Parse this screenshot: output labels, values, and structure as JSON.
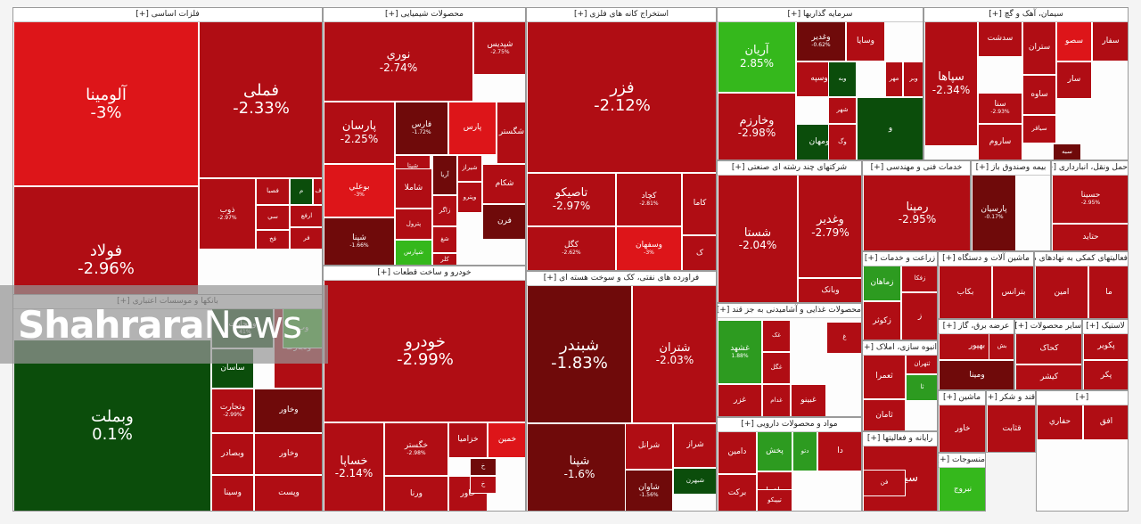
{
  "colors": {
    "red": "#b00d14",
    "brightRed": "#dd1519",
    "darkRed": "#6f0a0a",
    "darkGreen": "#0b4d0b",
    "green": "#2d9b20",
    "brightGreen": "#35b81c"
  },
  "watermark": {
    "bold": "Shahrara",
    "light": "News"
  },
  "chart_data": {
    "type": "treemap",
    "title": "",
    "sectors": [
      {
        "name": "فلزات اساسی [+]",
        "tiles": [
          {
            "s": "آلومینا",
            "c": "-3%",
            "t": "brightRed"
          },
          {
            "s": "فملی",
            "c": "-2.33%",
            "t": "red"
          },
          {
            "s": "فولاد",
            "c": "-2.96%",
            "t": "red"
          },
          {
            "s": "ذوب",
            "c": "-2.97%",
            "t": "red"
          },
          {
            "s": "فصبا",
            "c": "",
            "t": "red"
          },
          {
            "s": "سي",
            "c": "",
            "t": "red"
          },
          {
            "s": "فخ",
            "c": "",
            "t": "red"
          },
          {
            "s": "ارفع",
            "c": "",
            "t": "red"
          },
          {
            "s": "فر",
            "c": "",
            "t": "red"
          },
          {
            "s": "م",
            "c": "",
            "t": "darkGreen"
          },
          {
            "s": "ف",
            "c": "",
            "t": "red"
          }
        ]
      },
      {
        "name": "بانکها و موسسات اعتباری [+]",
        "tiles": [
          {
            "s": "وبملت",
            "c": "0.1%",
            "t": "darkGreen"
          },
          {
            "s": "وتجارت",
            "c": "-2.99%",
            "t": "red"
          },
          {
            "s": "وبصادر",
            "c": "",
            "t": "red"
          },
          {
            "s": "وسینا",
            "c": "",
            "t": "red"
          },
          {
            "s": "وخاور",
            "c": "",
            "t": "red"
          },
          {
            "s": "وپست",
            "c": "",
            "t": "red"
          },
          {
            "s": "ساسان",
            "c": "",
            "t": "darkGreen"
          },
          {
            "s": "ونتجارت",
            "c": "0.41%",
            "t": "darkGreen"
          },
          {
            "s": "وتجارت",
            "c": "",
            "t": "red"
          },
          {
            "s": "وب",
            "c": "",
            "t": "brightGreen"
          },
          {
            "s": "وخاور",
            "c": "",
            "t": "darkRed"
          }
        ]
      },
      {
        "name": "محصولات شیمیایی [+]",
        "tiles": [
          {
            "s": "نوري",
            "c": "-2.74%",
            "t": "red"
          },
          {
            "s": "شپديس",
            "c": "-2.75%",
            "t": "red"
          },
          {
            "s": "پارس",
            "c": "",
            "t": "brightRed"
          },
          {
            "s": "شگستر",
            "c": "",
            "t": "red"
          },
          {
            "s": "پارسان",
            "c": "-2.25%",
            "t": "red"
          },
          {
            "s": "فارس",
            "c": "-1.72%",
            "t": "darkRed"
          },
          {
            "s": "شپتا",
            "c": "",
            "t": "red"
          },
          {
            "s": "شاملا",
            "c": "",
            "t": "red"
          },
          {
            "s": "آريا",
            "c": "",
            "t": "darkRed"
          },
          {
            "s": "شیراز",
            "c": "",
            "t": "red"
          },
          {
            "s": "شکام",
            "c": "",
            "t": "red"
          },
          {
            "s": "بوعلي",
            "c": "-3%",
            "t": "brightRed"
          },
          {
            "s": "پترول",
            "c": "",
            "t": "red"
          },
          {
            "s": "زاگر",
            "c": "",
            "t": "red"
          },
          {
            "s": "وپترو",
            "c": "",
            "t": "red"
          },
          {
            "s": "فرن",
            "c": "",
            "t": "darkRed"
          },
          {
            "s": "شپنا",
            "c": "-1.66%",
            "t": "darkRed"
          },
          {
            "s": "شپارس",
            "c": "",
            "t": "brightGreen"
          },
          {
            "s": "شغ",
            "c": "",
            "t": "red"
          },
          {
            "s": "کلر",
            "c": "",
            "t": "red"
          }
        ]
      },
      {
        "name": "خودرو و ساخت قطعات [+]",
        "tiles": [
          {
            "s": "خودرو",
            "c": "-2.99%",
            "t": "red"
          },
          {
            "s": "خساپا",
            "c": "-2.14%",
            "t": "red"
          },
          {
            "s": "خگستر",
            "c": "-2.98%",
            "t": "red"
          },
          {
            "s": "خزاميا",
            "c": "",
            "t": "red"
          },
          {
            "s": "خمين",
            "c": "",
            "t": "brightRed"
          },
          {
            "s": "ورنا",
            "c": "",
            "t": "red"
          },
          {
            "s": "خاور",
            "c": "",
            "t": "red"
          },
          {
            "s": "خ",
            "c": "",
            "t": "darkRed"
          },
          {
            "s": "خ",
            "c": "",
            "t": "red"
          }
        ]
      },
      {
        "name": "استخراج کانه های فلزی [+]",
        "tiles": [
          {
            "s": "فزر",
            "c": "-2.12%",
            "t": "red"
          },
          {
            "s": "کاما",
            "c": "",
            "t": "red"
          },
          {
            "s": "تاصیکو",
            "c": "-2.97%",
            "t": "red"
          },
          {
            "s": "کگل",
            "c": "-2.62%",
            "t": "red"
          },
          {
            "s": "کچاد",
            "c": "-2.81%",
            "t": "red"
          },
          {
            "s": "وسفهان",
            "c": "-3%",
            "t": "brightRed"
          },
          {
            "s": "ک",
            "c": "",
            "t": "red"
          }
        ]
      },
      {
        "name": "فراورده های نفتی، کک و سوخت هسته ای [+]",
        "tiles": [
          {
            "s": "شبندر",
            "c": "-1.83%",
            "t": "darkRed"
          },
          {
            "s": "شتران",
            "c": "-2.03%",
            "t": "red"
          },
          {
            "s": "شپنا",
            "c": "-1.6%",
            "t": "darkRed"
          },
          {
            "s": "شراز",
            "c": "",
            "t": "red"
          },
          {
            "s": "شرانل",
            "c": "",
            "t": "red"
          },
          {
            "s": "شبهرن",
            "c": "",
            "t": "darkGreen"
          },
          {
            "s": "شاوان",
            "c": "-1.56%",
            "t": "darkRed"
          }
        ]
      },
      {
        "name": "سرمایه گذاریها [+]",
        "tiles": [
          {
            "s": "آريان",
            "c": "2.85%",
            "t": "brightGreen"
          },
          {
            "s": "وخارزم",
            "c": "-2.98%",
            "t": "red"
          },
          {
            "s": "وسپه",
            "c": "",
            "t": "red"
          },
          {
            "s": "ومهان",
            "c": "",
            "t": "darkGreen"
          },
          {
            "s": "وبه",
            "c": "",
            "t": "darkGreen"
          },
          {
            "s": "شهر",
            "c": "",
            "t": "red"
          },
          {
            "s": "وگ",
            "c": "",
            "t": "red"
          },
          {
            "s": "وسایا",
            "c": "",
            "t": "red"
          },
          {
            "s": "مهر",
            "c": "",
            "t": "red"
          },
          {
            "s": "وبر",
            "c": "",
            "t": "red"
          },
          {
            "s": "وغدیر",
            "c": "-0.62%",
            "t": "darkRed"
          },
          {
            "s": "و",
            "c": "",
            "t": "darkGreen"
          }
        ]
      },
      {
        "name": "سیمان، آهک و گچ [+]",
        "tiles": [
          {
            "s": "سپاها",
            "c": "-2.34%",
            "t": "red"
          },
          {
            "s": "سدشت",
            "c": "",
            "t": "red"
          },
          {
            "s": "ستران",
            "c": "",
            "t": "red"
          },
          {
            "s": "سصو",
            "c": "",
            "t": "brightRed"
          },
          {
            "s": "سفار",
            "c": "",
            "t": "red"
          },
          {
            "s": "ساوه",
            "c": "",
            "t": "red"
          },
          {
            "s": "سار",
            "c": "",
            "t": "red"
          },
          {
            "s": "ساروم",
            "c": "",
            "t": "red"
          },
          {
            "s": "سیاقر",
            "c": "",
            "t": "red"
          },
          {
            "s": "سبه",
            "c": "",
            "t": "darkRed"
          },
          {
            "s": "سنا",
            "c": "-2.93%",
            "t": "red"
          }
        ]
      },
      {
        "name": "شرکتهای چند رشته ای صنعتی [+]",
        "tiles": [
          {
            "s": "شستا",
            "c": "-2.04%",
            "t": "red"
          },
          {
            "s": "وغدير",
            "c": "-2.79%",
            "t": "red"
          },
          {
            "s": "وبانک",
            "c": "",
            "t": "red"
          }
        ]
      },
      {
        "name": "خدمات فنی و مهندسی [+]",
        "tiles": [
          {
            "s": "رمپنا",
            "c": "-2.95%",
            "t": "red"
          }
        ]
      },
      {
        "name": "بیمه وصندوق باز [+]",
        "tiles": [
          {
            "s": "پارسیان",
            "c": "-0.17%",
            "t": "darkRed"
          }
        ]
      },
      {
        "name": "حمل ونقل، انبارداری [+]",
        "tiles": [
          {
            "s": "حسینا",
            "c": "-2.95%",
            "t": "red"
          },
          {
            "s": "حتاید",
            "c": "",
            "t": "red"
          }
        ]
      },
      {
        "name": "زراعت و خدمات [+]",
        "tiles": [
          {
            "s": "زماهان",
            "c": "",
            "t": "green"
          },
          {
            "s": "زکوثر",
            "c": "",
            "t": "red"
          },
          {
            "s": "زفکا",
            "c": "",
            "t": "red"
          },
          {
            "s": "ز",
            "c": "",
            "t": "red"
          }
        ]
      },
      {
        "name": "محصولات غذایی و آشامیدنی به جز قند [+]",
        "tiles": [
          {
            "s": "غزر",
            "c": "",
            "t": "red"
          },
          {
            "s": "غگل",
            "c": "",
            "t": "red"
          },
          {
            "s": "غدام",
            "c": "",
            "t": "red"
          },
          {
            "s": "غبینو",
            "c": "",
            "t": "red"
          },
          {
            "s": "غک",
            "c": "",
            "t": "red"
          },
          {
            "s": "غ",
            "c": "",
            "t": "red"
          },
          {
            "s": "غشهد",
            "c": "1.88%",
            "t": "green"
          }
        ]
      },
      {
        "name": "انبوه سازی، املاک [+]",
        "tiles": [
          {
            "s": "ثعمرا",
            "c": "",
            "t": "red"
          },
          {
            "s": "ثامان",
            "c": "",
            "t": "red"
          },
          {
            "s": "ثتهران",
            "c": "",
            "t": "red"
          },
          {
            "s": "ثا",
            "c": "",
            "t": "green"
          }
        ]
      },
      {
        "name": "مواد و محصولات دارویی [+]",
        "tiles": [
          {
            "s": "دامين",
            "c": "",
            "t": "red"
          },
          {
            "s": "برکت",
            "c": "",
            "t": "red"
          },
          {
            "s": "پخش",
            "c": "",
            "t": "green"
          },
          {
            "s": "دلقما",
            "c": "",
            "t": "red"
          },
          {
            "s": "تیپیکو",
            "c": "",
            "t": "red"
          },
          {
            "s": "دتو",
            "c": "",
            "t": "green"
          },
          {
            "s": "دا",
            "c": "",
            "t": "red"
          }
        ]
      },
      {
        "name": "رایانه و فعالیتها [+]",
        "tiles": [
          {
            "s": "سیستم",
            "c": "",
            "t": "red"
          },
          {
            "s": "فن",
            "c": "",
            "t": "red"
          }
        ]
      },
      {
        "name": "ماشین آلات و دستگاه [+]",
        "tiles": [
          {
            "s": "بکاب",
            "c": "",
            "t": "red"
          },
          {
            "s": "بترانس",
            "c": "",
            "t": "red"
          }
        ]
      },
      {
        "name": "فعالیتهای کمکی به نهادهای مالی [+]",
        "tiles": [
          {
            "s": "امین",
            "c": "",
            "t": "red"
          },
          {
            "s": "ما",
            "c": "",
            "t": "red"
          }
        ]
      },
      {
        "name": "عرضه برق، گاز [+]",
        "tiles": [
          {
            "s": "بهپور",
            "c": "",
            "t": "red"
          },
          {
            "s": "ومینا",
            "c": "",
            "t": "darkRed"
          },
          {
            "s": "بش",
            "c": "",
            "t": "red"
          }
        ]
      },
      {
        "name": "سایر محصولات [+]",
        "tiles": [
          {
            "s": "کحاک",
            "c": "",
            "t": "red"
          },
          {
            "s": "کیشر",
            "c": "",
            "t": "red"
          }
        ]
      },
      {
        "name": "لاستیک [+]",
        "tiles": [
          {
            "s": "پکویر",
            "c": "",
            "t": "red"
          },
          {
            "s": "پکر",
            "c": "",
            "t": "red"
          }
        ]
      },
      {
        "name": "ماشین [+]",
        "tiles": [
          {
            "s": "خاور",
            "c": "",
            "t": "red"
          }
        ]
      },
      {
        "name": "قند و شکر [+]",
        "tiles": [
          {
            "s": "قثابت",
            "c": "",
            "t": "red"
          }
        ]
      },
      {
        "name": "منسوجات [+]",
        "tiles": [
          {
            "s": "نبروج",
            "c": "",
            "t": "brightGreen"
          }
        ]
      },
      {
        "name": "[+]",
        "tiles": [
          {
            "s": "حفاري",
            "c": "",
            "t": "red"
          },
          {
            "s": "افق",
            "c": "",
            "t": "red"
          }
        ]
      }
    ]
  }
}
